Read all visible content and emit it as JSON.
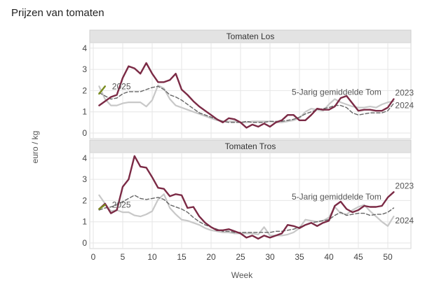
{
  "chart_data": {
    "type": "line",
    "title": "Prijzen van tomaten",
    "xlabel": "Week",
    "ylabel": "euro / kg",
    "xlim": [
      0,
      53
    ],
    "ylim": [
      0,
      4.4
    ],
    "x_ticks": [
      0,
      5,
      10,
      15,
      20,
      25,
      30,
      35,
      40,
      45,
      50
    ],
    "y_ticks": [
      0,
      1,
      2,
      3,
      4
    ],
    "grid": true,
    "colors": {
      "2023": "#7b2a45",
      "2024": "#c8c8c8",
      "avg": "#666666",
      "2025": "#7a8c1e"
    },
    "panels": [
      {
        "title": "Tomaten Los",
        "labels": {
          "s2023": "2023",
          "s2024": "2024",
          "avg": "5-Jarig gemiddelde Tom",
          "s2025": "2025"
        },
        "series": [
          {
            "name": "2023",
            "x": [
              1,
              2,
              3,
              4,
              5,
              6,
              7,
              8,
              9,
              10,
              11,
              12,
              13,
              14,
              15,
              16,
              17,
              18,
              19,
              20,
              21,
              22,
              23,
              24,
              25,
              26,
              27,
              28,
              29,
              30,
              31,
              32,
              33,
              34,
              35,
              36,
              37,
              38,
              39,
              40,
              41,
              42,
              43,
              44,
              45,
              46,
              47,
              48,
              49,
              50,
              51
            ],
            "values": [
              1.3,
              1.5,
              1.7,
              1.8,
              2.6,
              3.15,
              3.05,
              2.8,
              3.3,
              2.8,
              2.4,
              2.4,
              2.5,
              2.8,
              2.05,
              1.8,
              1.5,
              1.25,
              1.05,
              0.85,
              0.65,
              0.5,
              0.7,
              0.65,
              0.5,
              0.25,
              0.4,
              0.3,
              0.45,
              0.3,
              0.5,
              0.6,
              0.85,
              0.85,
              0.6,
              0.6,
              0.85,
              1.15,
              1.1,
              1.1,
              1.25,
              1.65,
              1.75,
              1.4,
              1.05,
              1.1,
              1.1,
              1.05,
              1.05,
              1.2,
              1.6
            ]
          },
          {
            "name": "2024",
            "x": [
              1,
              2,
              3,
              4,
              5,
              6,
              7,
              8,
              9,
              10,
              11,
              12,
              13,
              14,
              15,
              16,
              17,
              18,
              19,
              20,
              21,
              22,
              23,
              24,
              25,
              26,
              27,
              28,
              29,
              30,
              31,
              32,
              33,
              34,
              35,
              36,
              37,
              38,
              39,
              40,
              41,
              42,
              43,
              44,
              45,
              46,
              47,
              48,
              49,
              50,
              51
            ],
            "values": [
              2.2,
              1.6,
              1.3,
              1.3,
              1.4,
              1.45,
              1.45,
              1.45,
              1.25,
              1.55,
              2.25,
              2.1,
              1.6,
              1.3,
              1.2,
              1.1,
              1.0,
              0.9,
              0.8,
              0.7,
              0.6,
              0.55,
              0.55,
              0.55,
              0.5,
              0.5,
              0.55,
              0.55,
              0.55,
              0.55,
              0.5,
              0.5,
              0.55,
              0.6,
              0.7,
              1.0,
              1.15,
              1.1,
              1.05,
              1.35,
              1.6,
              1.45,
              1.35,
              1.25,
              1.2,
              1.2,
              1.25,
              1.2,
              1.35,
              1.45,
              1.5
            ]
          },
          {
            "name": "5-Jarig gemiddelde Tom",
            "x": [
              1,
              2,
              3,
              4,
              5,
              6,
              7,
              8,
              9,
              10,
              11,
              12,
              13,
              14,
              15,
              16,
              17,
              18,
              19,
              20,
              21,
              22,
              23,
              24,
              25,
              26,
              27,
              28,
              29,
              30,
              31,
              32,
              33,
              34,
              35,
              36,
              37,
              38,
              39,
              40,
              41,
              42,
              43,
              44,
              45,
              46,
              47,
              48,
              49,
              50,
              51
            ],
            "values": [
              1.9,
              1.75,
              1.6,
              1.65,
              1.85,
              1.95,
              1.95,
              1.95,
              2.05,
              2.15,
              2.2,
              2.05,
              1.8,
              1.7,
              1.55,
              1.35,
              1.15,
              0.95,
              0.85,
              0.75,
              0.65,
              0.55,
              0.5,
              0.5,
              0.5,
              0.55,
              0.5,
              0.5,
              0.5,
              0.55,
              0.55,
              0.55,
              0.6,
              0.65,
              0.75,
              0.9,
              1.0,
              1.1,
              1.15,
              1.2,
              1.3,
              1.3,
              1.2,
              0.95,
              0.85,
              0.9,
              0.95,
              0.95,
              0.95,
              1.05,
              1.4
            ]
          },
          {
            "name": "2025",
            "x": [
              1,
              2
            ],
            "values": [
              1.85,
              2.2
            ]
          }
        ]
      },
      {
        "title": "Tomaten Tros",
        "labels": {
          "s2023": "2023",
          "s2024": "2024",
          "avg": "5-Jarig gemiddelde Tom",
          "s2025": "2025"
        },
        "series": [
          {
            "name": "2023",
            "x": [
              1,
              2,
              3,
              4,
              5,
              6,
              7,
              8,
              9,
              10,
              11,
              12,
              13,
              14,
              15,
              16,
              17,
              18,
              19,
              20,
              21,
              22,
              23,
              24,
              25,
              26,
              27,
              28,
              29,
              30,
              31,
              32,
              33,
              34,
              35,
              36,
              37,
              38,
              39,
              40,
              41,
              42,
              43,
              44,
              45,
              46,
              47,
              48,
              49,
              50,
              51
            ],
            "values": [
              1.6,
              1.85,
              1.4,
              1.55,
              2.65,
              3.0,
              4.1,
              3.6,
              3.55,
              3.1,
              2.6,
              2.55,
              2.2,
              2.3,
              2.25,
              1.65,
              1.7,
              1.25,
              0.95,
              0.75,
              0.6,
              0.6,
              0.65,
              0.55,
              0.45,
              0.25,
              0.35,
              0.2,
              0.35,
              0.25,
              0.35,
              0.45,
              0.85,
              0.8,
              0.7,
              0.85,
              0.95,
              0.8,
              0.95,
              1.05,
              1.75,
              1.95,
              1.6,
              1.45,
              1.55,
              1.75,
              1.7,
              1.7,
              1.75,
              2.15,
              2.4
            ]
          },
          {
            "name": "2024",
            "x": [
              1,
              2,
              3,
              4,
              5,
              6,
              7,
              8,
              9,
              10,
              11,
              12,
              13,
              14,
              15,
              16,
              17,
              18,
              19,
              20,
              21,
              22,
              23,
              24,
              25,
              26,
              27,
              28,
              29,
              30,
              31,
              32,
              33,
              34,
              35,
              36,
              37,
              38,
              39,
              40,
              41,
              42,
              43,
              44,
              45,
              46,
              47,
              48,
              49,
              50,
              51
            ],
            "values": [
              2.25,
              1.85,
              1.5,
              1.55,
              1.45,
              1.45,
              1.3,
              1.25,
              1.35,
              1.5,
              2.05,
              2.3,
              1.65,
              1.35,
              1.1,
              1.05,
              0.95,
              0.85,
              0.7,
              0.6,
              0.55,
              0.5,
              0.5,
              0.45,
              0.45,
              0.45,
              0.45,
              0.4,
              0.75,
              0.35,
              0.35,
              0.35,
              0.4,
              0.5,
              0.7,
              1.1,
              1.05,
              1.0,
              1.05,
              1.2,
              1.7,
              1.4,
              1.35,
              1.55,
              1.7,
              1.8,
              1.5,
              1.25,
              1.0,
              0.8,
              1.25
            ]
          },
          {
            "name": "5-Jarig gemiddelde Tom",
            "x": [
              1,
              2,
              3,
              4,
              5,
              6,
              7,
              8,
              9,
              10,
              11,
              12,
              13,
              14,
              15,
              16,
              17,
              18,
              19,
              20,
              21,
              22,
              23,
              24,
              25,
              26,
              27,
              28,
              29,
              30,
              31,
              32,
              33,
              34,
              35,
              36,
              37,
              38,
              39,
              40,
              41,
              42,
              43,
              44,
              45,
              46,
              47,
              48,
              49,
              50,
              51
            ],
            "values": [
              1.55,
              1.65,
              1.7,
              1.8,
              1.95,
              2.1,
              2.25,
              2.1,
              2.05,
              2.1,
              2.15,
              2.05,
              1.8,
              1.7,
              1.6,
              1.45,
              1.2,
              1.0,
              0.85,
              0.75,
              0.65,
              0.55,
              0.55,
              0.5,
              0.5,
              0.5,
              0.5,
              0.5,
              0.5,
              0.5,
              0.55,
              0.55,
              0.6,
              0.65,
              0.75,
              0.85,
              0.95,
              1.0,
              1.05,
              1.1,
              1.3,
              1.45,
              1.3,
              1.35,
              1.4,
              1.4,
              1.3,
              1.35,
              1.35,
              1.45,
              1.65
            ]
          },
          {
            "name": "2025",
            "x": [
              1,
              2
            ],
            "values": [
              1.6,
              1.8
            ]
          }
        ]
      }
    ]
  }
}
